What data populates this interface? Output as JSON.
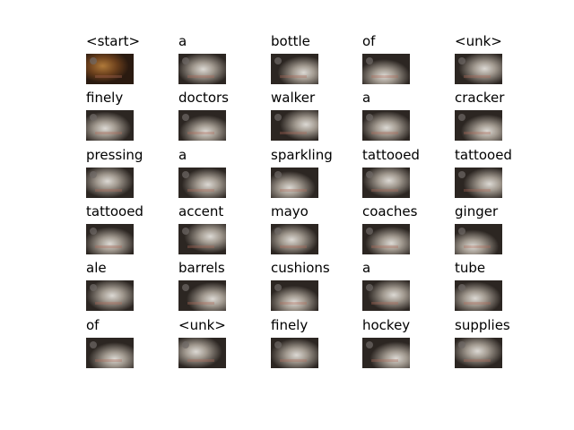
{
  "captions": [
    "<start>",
    "a",
    "bottle",
    "of",
    "<unk>",
    "finely",
    "doctors",
    "walker",
    "a",
    "cracker",
    "pressing",
    "a",
    "sparkling",
    "tattooed",
    "tattooed",
    "tattooed",
    "accent",
    "mayo",
    "coaches",
    "ginger",
    "ale",
    "barrels",
    "cushions",
    "a",
    "tube",
    "of",
    "<unk>",
    "finely",
    "hockey",
    "supplies"
  ]
}
